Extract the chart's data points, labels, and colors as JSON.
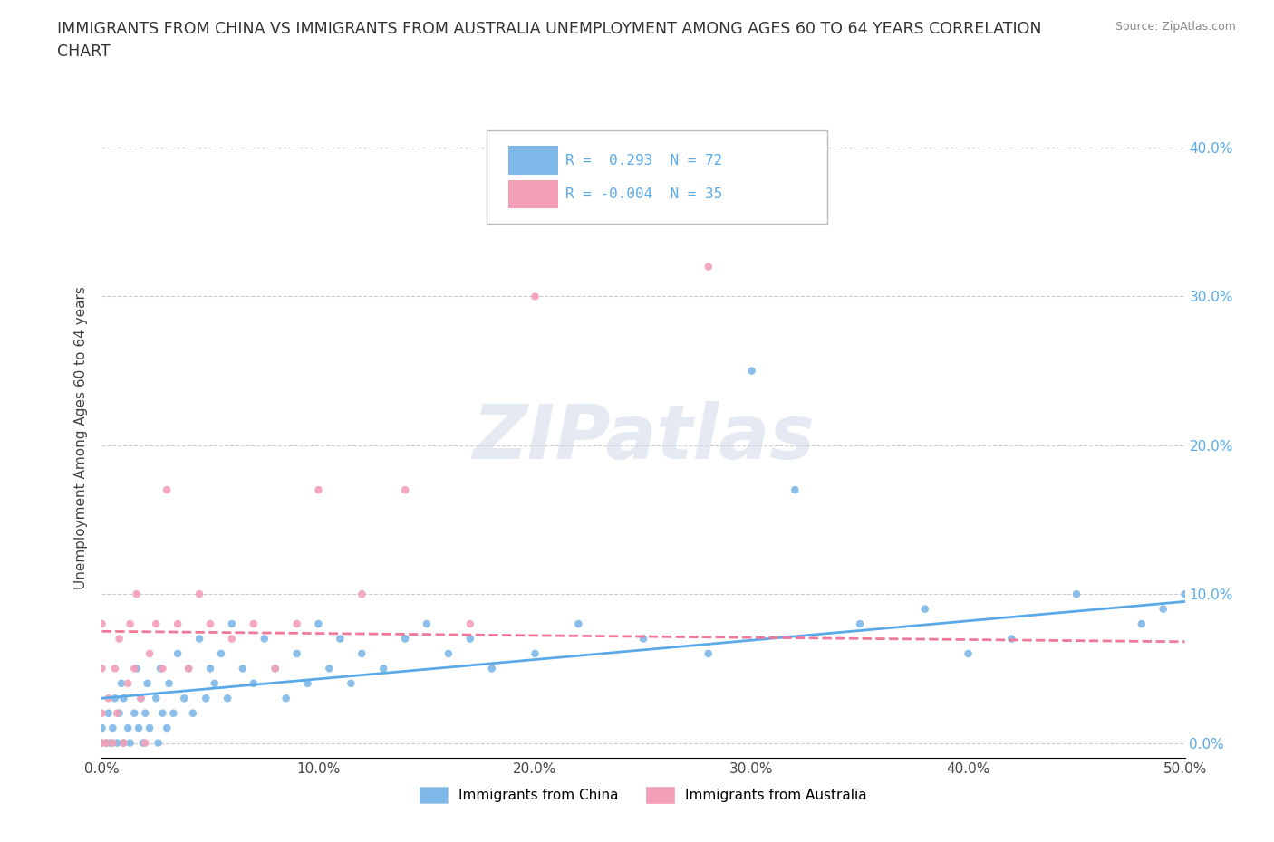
{
  "title": "IMMIGRANTS FROM CHINA VS IMMIGRANTS FROM AUSTRALIA UNEMPLOYMENT AMONG AGES 60 TO 64 YEARS CORRELATION\nCHART",
  "source": "Source: ZipAtlas.com",
  "ylabel": "Unemployment Among Ages 60 to 64 years",
  "xlim": [
    0.0,
    0.5
  ],
  "ylim": [
    -0.01,
    0.42
  ],
  "xticks": [
    0.0,
    0.1,
    0.2,
    0.3,
    0.4,
    0.5
  ],
  "xticklabels": [
    "0.0%",
    "10.0%",
    "20.0%",
    "30.0%",
    "40.0%",
    "50.0%"
  ],
  "yticks": [
    0.0,
    0.1,
    0.2,
    0.3,
    0.4
  ],
  "yticklabels": [
    "0.0%",
    "10.0%",
    "20.0%",
    "30.0%",
    "40.0%"
  ],
  "china_color": "#7eb8e8",
  "australia_color": "#f4a0b8",
  "china_R": 0.293,
  "china_N": 72,
  "australia_R": -0.004,
  "australia_N": 35,
  "china_line_color": "#5aaae8",
  "australia_line_color": "#f07898",
  "legend_china": "Immigrants from China",
  "legend_australia": "Immigrants from Australia",
  "china_x": [
    0.0,
    0.0,
    0.002,
    0.003,
    0.004,
    0.005,
    0.006,
    0.007,
    0.008,
    0.009,
    0.01,
    0.01,
    0.012,
    0.013,
    0.015,
    0.016,
    0.017,
    0.018,
    0.019,
    0.02,
    0.021,
    0.022,
    0.025,
    0.026,
    0.027,
    0.028,
    0.03,
    0.031,
    0.033,
    0.035,
    0.038,
    0.04,
    0.042,
    0.045,
    0.048,
    0.05,
    0.052,
    0.055,
    0.058,
    0.06,
    0.065,
    0.07,
    0.075,
    0.08,
    0.085,
    0.09,
    0.095,
    0.1,
    0.105,
    0.11,
    0.115,
    0.12,
    0.13,
    0.14,
    0.15,
    0.16,
    0.17,
    0.18,
    0.2,
    0.22,
    0.25,
    0.28,
    0.3,
    0.32,
    0.35,
    0.38,
    0.4,
    0.42,
    0.45,
    0.48,
    0.49,
    0.5
  ],
  "china_y": [
    0.0,
    0.01,
    0.0,
    0.02,
    0.0,
    0.01,
    0.03,
    0.0,
    0.02,
    0.04,
    0.0,
    0.03,
    0.01,
    0.0,
    0.02,
    0.05,
    0.01,
    0.03,
    0.0,
    0.02,
    0.04,
    0.01,
    0.03,
    0.0,
    0.05,
    0.02,
    0.01,
    0.04,
    0.02,
    0.06,
    0.03,
    0.05,
    0.02,
    0.07,
    0.03,
    0.05,
    0.04,
    0.06,
    0.03,
    0.08,
    0.05,
    0.04,
    0.07,
    0.05,
    0.03,
    0.06,
    0.04,
    0.08,
    0.05,
    0.07,
    0.04,
    0.06,
    0.05,
    0.07,
    0.08,
    0.06,
    0.07,
    0.05,
    0.06,
    0.08,
    0.07,
    0.06,
    0.25,
    0.17,
    0.08,
    0.09,
    0.06,
    0.07,
    0.1,
    0.08,
    0.09,
    0.1
  ],
  "australia_x": [
    0.0,
    0.0,
    0.0,
    0.0,
    0.002,
    0.003,
    0.005,
    0.006,
    0.007,
    0.008,
    0.01,
    0.012,
    0.013,
    0.015,
    0.016,
    0.018,
    0.02,
    0.022,
    0.025,
    0.028,
    0.03,
    0.035,
    0.04,
    0.045,
    0.05,
    0.06,
    0.07,
    0.08,
    0.09,
    0.1,
    0.12,
    0.14,
    0.17,
    0.2,
    0.28
  ],
  "australia_y": [
    0.0,
    0.02,
    0.05,
    0.08,
    0.0,
    0.03,
    0.0,
    0.05,
    0.02,
    0.07,
    0.0,
    0.04,
    0.08,
    0.05,
    0.1,
    0.03,
    0.0,
    0.06,
    0.08,
    0.05,
    0.17,
    0.08,
    0.05,
    0.1,
    0.08,
    0.07,
    0.08,
    0.05,
    0.08,
    0.17,
    0.1,
    0.17,
    0.08,
    0.3,
    0.32
  ],
  "china_trend_x": [
    0.0,
    0.5
  ],
  "china_trend_y": [
    0.03,
    0.095
  ],
  "aus_trend_x": [
    0.0,
    0.5
  ],
  "aus_trend_y": [
    0.075,
    0.068
  ]
}
